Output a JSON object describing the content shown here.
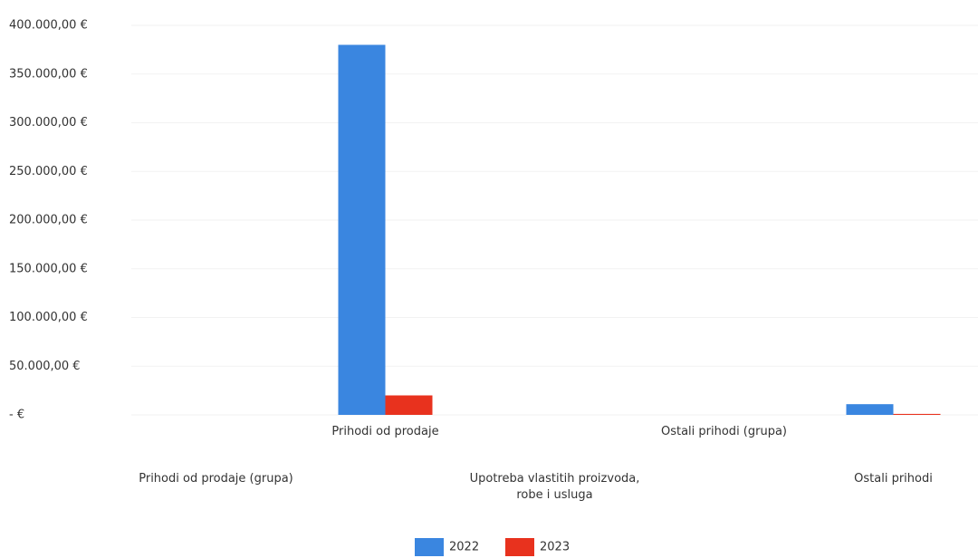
{
  "chart_data": {
    "type": "bar",
    "categories": [
      "Prihodi od prodaje (grupa)",
      "Prihodi od prodaje",
      "Upotreba vlastitih proizvoda, robe i usluga",
      "Ostali prihodi (grupa)",
      "Ostali prihodi"
    ],
    "series": [
      {
        "name": "2022",
        "color": "#3a86e0",
        "values": [
          null,
          380000,
          null,
          null,
          11000
        ]
      },
      {
        "name": "2023",
        "color": "#e8321e",
        "values": [
          null,
          20000,
          null,
          null,
          1000
        ]
      }
    ],
    "ylim": [
      0,
      400000
    ],
    "yticks": [
      {
        "value": 0,
        "label": "-  €"
      },
      {
        "value": 50000,
        "label": "50.000,00 €"
      },
      {
        "value": 100000,
        "label": "100.000,00 €"
      },
      {
        "value": 150000,
        "label": "150.000,00 €"
      },
      {
        "value": 200000,
        "label": "200.000,00 €"
      },
      {
        "value": 250000,
        "label": "250.000,00 €"
      },
      {
        "value": 300000,
        "label": "300.000,00 €"
      },
      {
        "value": 350000,
        "label": "350.000,00 €"
      },
      {
        "value": 400000,
        "label": "400.000,00 €"
      }
    ],
    "grid": true,
    "legend": "bottom"
  }
}
